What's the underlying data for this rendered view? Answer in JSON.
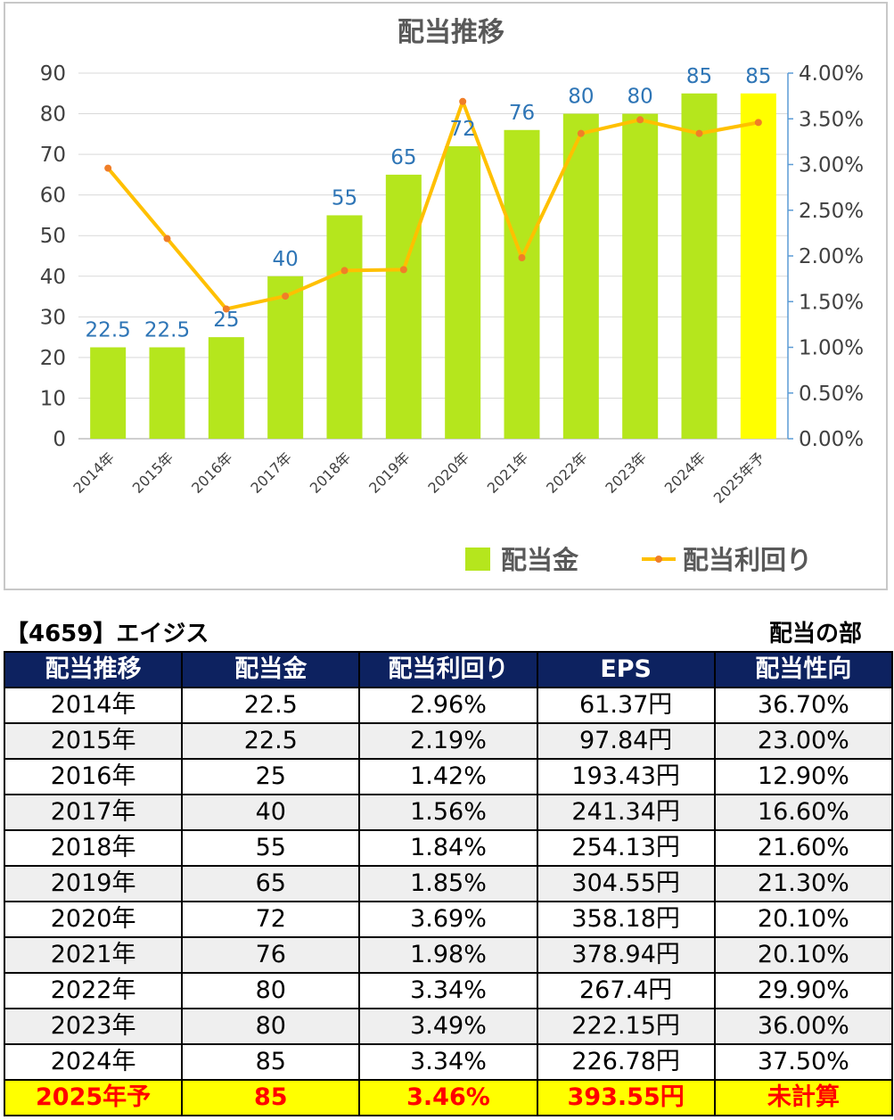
{
  "chart_data": {
    "type": "bar",
    "title": "配当推移",
    "categories": [
      "2014年",
      "2015年",
      "2016年",
      "2017年",
      "2018年",
      "2019年",
      "2020年",
      "2021年",
      "2022年",
      "2023年",
      "2024年",
      "2025年予"
    ],
    "series": [
      {
        "name": "配当金",
        "type": "bar",
        "axis": "left",
        "values": [
          22.5,
          22.5,
          25,
          40,
          55,
          65,
          72,
          76,
          80,
          80,
          85,
          85
        ],
        "labels": [
          "22.5",
          "22.5",
          "25",
          "40",
          "55",
          "65",
          "72",
          "76",
          "80",
          "80",
          "85",
          "85"
        ]
      },
      {
        "name": "配当利回り",
        "type": "line",
        "axis": "right",
        "values": [
          2.96,
          2.19,
          1.42,
          1.56,
          1.84,
          1.85,
          3.69,
          1.98,
          3.34,
          3.49,
          3.34,
          3.46
        ]
      }
    ],
    "ylim": [
      0,
      90
    ],
    "y_ticks": [
      "0",
      "10",
      "20",
      "30",
      "40",
      "50",
      "60",
      "70",
      "80",
      "90"
    ],
    "y2lim": [
      0,
      4
    ],
    "y2_ticks": [
      "0.00%",
      "0.50%",
      "1.00%",
      "1.50%",
      "2.00%",
      "2.50%",
      "3.00%",
      "3.50%",
      "4.00%"
    ],
    "legend_position": "bottom-right",
    "grid": true,
    "colors": {
      "bar": "#b5e61d",
      "bar_forecast": "#ffff00",
      "line": "#ffc000",
      "marker": "#f07e28",
      "data_label": "#2e75b6",
      "title": "#595959",
      "axis_text": "#404040",
      "grid": "#d9d9d9",
      "right_axis": "#5b9bd5"
    }
  },
  "table": {
    "company": "【4659】エイジス",
    "section": "配当の部",
    "headers": [
      "配当推移",
      "配当金",
      "配当利回り",
      "EPS",
      "配当性向"
    ],
    "rows": [
      [
        "2014年",
        "22.5",
        "2.96%",
        "61.37円",
        "36.70%"
      ],
      [
        "2015年",
        "22.5",
        "2.19%",
        "97.84円",
        "23.00%"
      ],
      [
        "2016年",
        "25",
        "1.42%",
        "193.43円",
        "12.90%"
      ],
      [
        "2017年",
        "40",
        "1.56%",
        "241.34円",
        "16.60%"
      ],
      [
        "2018年",
        "55",
        "1.84%",
        "254.13円",
        "21.60%"
      ],
      [
        "2019年",
        "65",
        "1.85%",
        "304.55円",
        "21.30%"
      ],
      [
        "2020年",
        "72",
        "3.69%",
        "358.18円",
        "20.10%"
      ],
      [
        "2021年",
        "76",
        "1.98%",
        "378.94円",
        "20.10%"
      ],
      [
        "2022年",
        "80",
        "3.34%",
        "267.4円",
        "29.90%"
      ],
      [
        "2023年",
        "80",
        "3.49%",
        "222.15円",
        "36.00%"
      ],
      [
        "2024年",
        "85",
        "3.34%",
        "226.78円",
        "37.50%"
      ],
      [
        "2025年予",
        "85",
        "3.46%",
        "393.55円",
        "未計算"
      ]
    ]
  }
}
